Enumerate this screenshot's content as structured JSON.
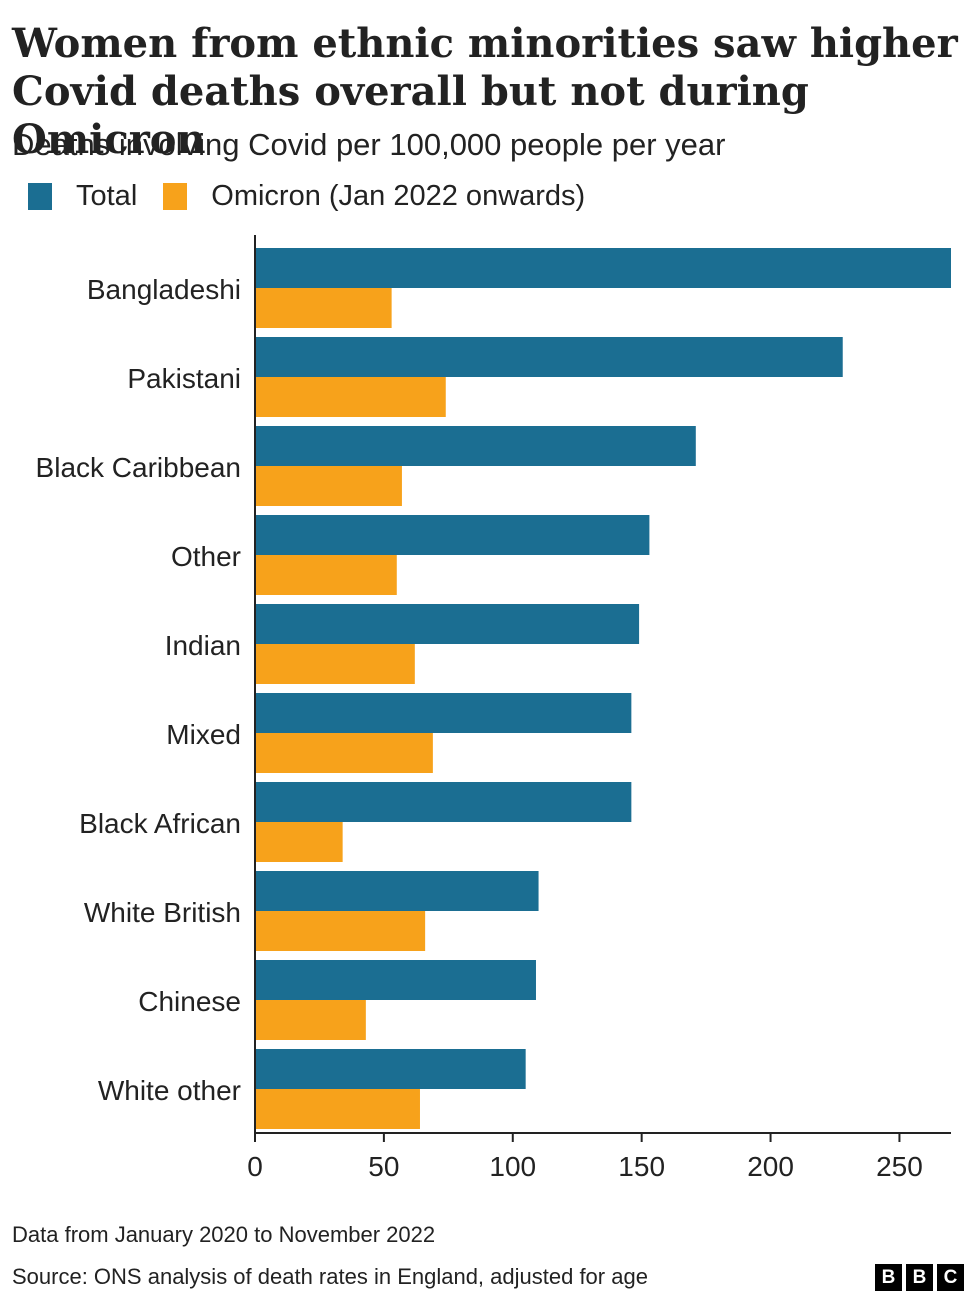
{
  "title": "Women from ethnic minorities saw higher Covid deaths overall but not during Omicron",
  "subtitle": "Deaths involving Covid per 100,000 people per year",
  "note": "Data from January 2020 to November 2022",
  "source": "Source: ONS analysis of death rates in England, adjusted for age",
  "logo": {
    "letters": [
      "B",
      "B",
      "C"
    ]
  },
  "colors": {
    "total": "#1b6e92",
    "omicron": "#f7a21b",
    "axis": "#222222"
  },
  "legend": {
    "total_label": "Total",
    "omicron_label": "Omicron (Jan 2022 onwards)"
  },
  "chart_data": {
    "type": "bar",
    "orientation": "horizontal",
    "categories": [
      "Bangladeshi",
      "Pakistani",
      "Black Caribbean",
      "Other",
      "Indian",
      "Mixed",
      "Black African",
      "White British",
      "Chinese",
      "White other"
    ],
    "series": [
      {
        "name": "Total",
        "values": [
          270,
          228,
          171,
          153,
          149,
          146,
          146,
          110,
          109,
          105
        ]
      },
      {
        "name": "Omicron (Jan 2022 onwards)",
        "values": [
          53,
          74,
          57,
          55,
          62,
          69,
          34,
          66,
          43,
          64
        ]
      }
    ],
    "x_ticks": [
      0,
      50,
      100,
      150,
      200,
      250
    ],
    "xlim": [
      0,
      270
    ],
    "grid": false,
    "legend_position": "top-left"
  }
}
